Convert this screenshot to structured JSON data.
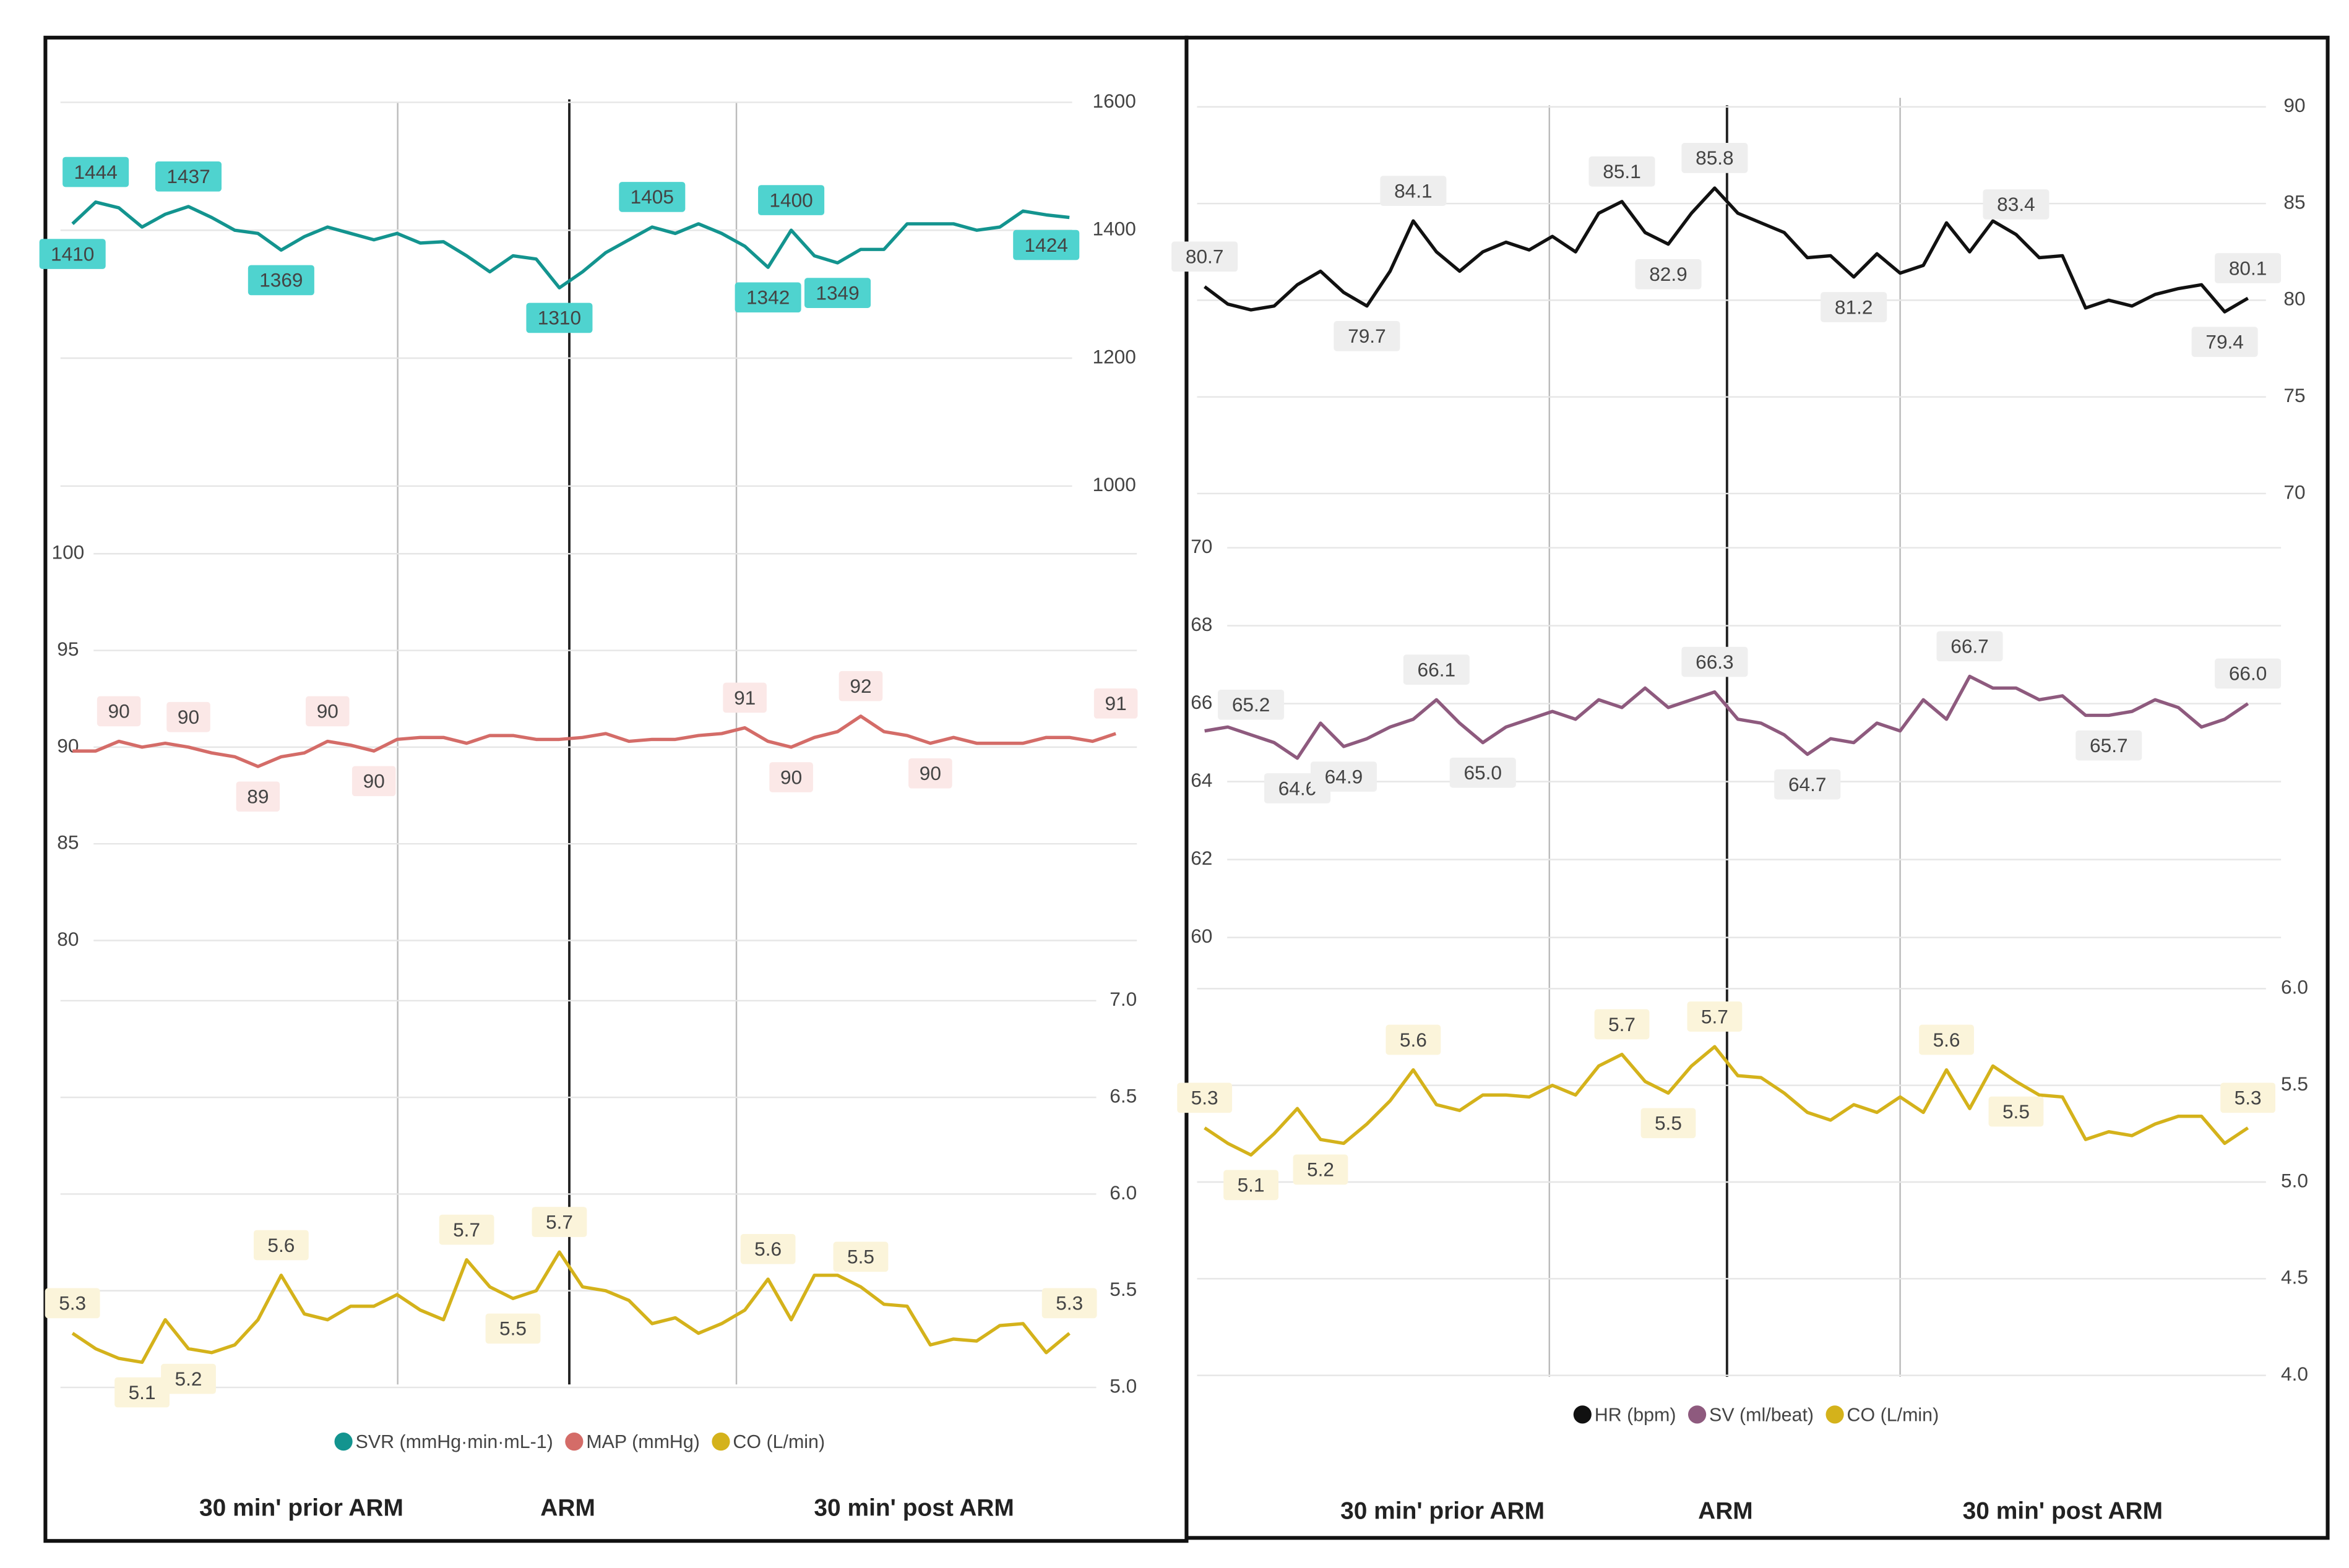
{
  "chart_data": [
    {
      "type": "line",
      "categories": [
        "30 min' prior ARM",
        "ARM",
        "30 min' post ARM"
      ],
      "subplots": [
        {
          "ylim": [
            1000,
            1600
          ],
          "yticks": [
            1000,
            1200,
            1400,
            1600
          ],
          "series": [
            {
              "name": "SVR (mmHg·min·mL-1)",
              "color": "#13948f",
              "label_bg": "#4fd3cf",
              "values": [
                1410,
                1444,
                1435,
                1405,
                1425,
                1437,
                1420,
                1400,
                1395,
                1369,
                1390,
                1405,
                1395,
                1385,
                1395,
                1380,
                1382,
                1360,
                1335,
                1360,
                1355,
                1310,
                1335,
                1365,
                1385,
                1405,
                1395,
                1410,
                1395,
                1375,
                1342,
                1400,
                1360,
                1349,
                1370,
                1370,
                1410,
                1410,
                1410,
                1400,
                1405,
                1430,
                1424,
                1420
              ],
              "value_labels": [
                "1410",
                "1444",
                null,
                null,
                null,
                "1437",
                null,
                null,
                null,
                "1369",
                null,
                null,
                null,
                null,
                null,
                null,
                null,
                null,
                null,
                null,
                null,
                "1310",
                null,
                null,
                null,
                "1405",
                null,
                null,
                null,
                null,
                "1342",
                "1400",
                null,
                "1349",
                null,
                null,
                null,
                null,
                null,
                null,
                null,
                null,
                "1424",
                null
              ]
            }
          ]
        },
        {
          "ylim": [
            80,
            100
          ],
          "yticks": [
            80,
            85,
            90,
            95,
            100
          ],
          "series": [
            {
              "name": "MAP (mmHg)",
              "color": "#d46c68",
              "label_bg": "#fbe8e7",
              "values": [
                89.8,
                89.8,
                90.3,
                90.0,
                90.2,
                90,
                89.7,
                89.5,
                89,
                89.5,
                89.7,
                90.3,
                90.1,
                89.8,
                90.4,
                90.5,
                90.5,
                90.2,
                90.6,
                90.6,
                90.4,
                90.4,
                90.5,
                90.7,
                90.3,
                90.4,
                90.4,
                90.6,
                90.7,
                91,
                90.3,
                90.0,
                90.5,
                90.8,
                91.6,
                90.8,
                90.6,
                90.2,
                90.5,
                90.2,
                90.2,
                90.2,
                90.5,
                90.5,
                90.3,
                90.7
              ],
              "value_labels": [
                null,
                null,
                "90",
                null,
                null,
                "90",
                null,
                null,
                "89",
                null,
                null,
                "90",
                null,
                "90",
                null,
                null,
                null,
                null,
                null,
                null,
                null,
                null,
                null,
                null,
                null,
                null,
                null,
                null,
                null,
                "91",
                null,
                "90",
                null,
                null,
                "92",
                null,
                null,
                "90",
                null,
                null,
                null,
                null,
                null,
                null,
                null,
                "91"
              ]
            }
          ]
        },
        {
          "ylim": [
            5,
            7
          ],
          "yticks": [
            {
              "value": 5,
              "label": "5.0"
            },
            5.5,
            {
              "value": 6,
              "label": "6.0"
            },
            6.5,
            {
              "value": 7,
              "label": "7.0"
            }
          ],
          "series": [
            {
              "name": "CO (L/min)",
              "color": "#d4b21b",
              "label_bg": "#fbf4da",
              "values": [
                5.28,
                5.2,
                5.15,
                5.13,
                5.35,
                5.2,
                5.18,
                5.22,
                5.35,
                5.58,
                5.38,
                5.35,
                5.42,
                5.42,
                5.48,
                5.4,
                5.35,
                5.66,
                5.52,
                5.46,
                5.5,
                5.7,
                5.52,
                5.5,
                5.45,
                5.33,
                5.36,
                5.28,
                5.33,
                5.4,
                5.56,
                5.35,
                5.58,
                5.58,
                5.52,
                5.43,
                5.42,
                5.22,
                5.25,
                5.24,
                5.32,
                5.33,
                5.18,
                5.28
              ],
              "value_labels": [
                "5.3",
                null,
                null,
                "5.1",
                null,
                "5.2",
                null,
                null,
                null,
                "5.6",
                null,
                null,
                null,
                null,
                null,
                null,
                null,
                "5.7",
                null,
                "5.5",
                null,
                "5.7",
                null,
                null,
                null,
                null,
                null,
                null,
                null,
                null,
                "5.6",
                null,
                null,
                null,
                "5.5",
                null,
                null,
                null,
                null,
                null,
                null,
                null,
                null,
                "5.3"
              ]
            }
          ]
        }
      ]
    },
    {
      "type": "line",
      "categories": [
        "30 min' prior ARM",
        "ARM",
        "30 min' post ARM"
      ],
      "subplots": [
        {
          "ylim": [
            70,
            90
          ],
          "yticks": [
            70,
            75,
            80,
            85,
            90
          ],
          "series": [
            {
              "name": "HR (bpm)",
              "color": "#111111",
              "label_bg": "#eeeeee",
              "values": [
                80.7,
                79.8,
                79.5,
                79.7,
                80.8,
                81.5,
                80.4,
                79.7,
                81.5,
                84.1,
                82.5,
                81.5,
                82.5,
                83.0,
                82.6,
                83.3,
                82.5,
                84.5,
                85.1,
                83.5,
                82.9,
                84.5,
                85.8,
                84.5,
                84.0,
                83.5,
                82.2,
                82.3,
                81.2,
                82.4,
                81.4,
                81.8,
                84.0,
                82.5,
                84.1,
                83.4,
                82.2,
                82.3,
                79.6,
                80.0,
                79.7,
                80.3,
                80.6,
                80.8,
                79.4,
                80.1
              ],
              "value_labels": [
                "80.7",
                null,
                null,
                null,
                null,
                null,
                null,
                "79.7",
                null,
                "84.1",
                null,
                null,
                null,
                null,
                null,
                null,
                null,
                null,
                "85.1",
                null,
                "82.9",
                null,
                "85.8",
                null,
                null,
                null,
                null,
                null,
                "81.2",
                null,
                null,
                null,
                null,
                null,
                null,
                "83.4",
                null,
                null,
                null,
                null,
                null,
                null,
                null,
                null,
                "79.4",
                "80.1"
              ]
            }
          ]
        },
        {
          "ylim": [
            60,
            70
          ],
          "yticks": [
            60,
            62,
            64,
            66,
            68,
            70
          ],
          "series": [
            {
              "name": "SV (ml/beat)",
              "color": "#8e5a7e",
              "label_bg": "#efefef",
              "values": [
                65.3,
                65.4,
                65.2,
                65.0,
                64.6,
                65.5,
                64.9,
                65.1,
                65.4,
                65.6,
                66.1,
                65.5,
                65.0,
                65.4,
                65.6,
                65.8,
                65.6,
                66.1,
                65.9,
                66.4,
                65.9,
                66.1,
                66.3,
                65.6,
                65.5,
                65.2,
                64.7,
                65.1,
                65.0,
                65.5,
                65.3,
                66.1,
                65.6,
                66.7,
                66.4,
                66.4,
                66.1,
                66.2,
                65.7,
                65.7,
                65.8,
                66.1,
                65.9,
                65.4,
                65.6,
                66.0
              ],
              "value_labels": [
                null,
                null,
                "65.2",
                null,
                "64.6",
                null,
                "64.9",
                null,
                null,
                null,
                "66.1",
                null,
                "65.0",
                null,
                null,
                null,
                null,
                null,
                null,
                null,
                null,
                null,
                "66.3",
                null,
                null,
                null,
                "64.7",
                null,
                null,
                null,
                null,
                null,
                null,
                "66.7",
                null,
                null,
                null,
                null,
                null,
                "65.7",
                null,
                null,
                null,
                null,
                null,
                "66.0"
              ]
            }
          ]
        },
        {
          "ylim": [
            4,
            6
          ],
          "yticks": [
            {
              "value": 4,
              "label": "4.0"
            },
            4.5,
            {
              "value": 5,
              "label": "5.0"
            },
            5.5,
            {
              "value": 6,
              "label": "6.0"
            }
          ],
          "series": [
            {
              "name": "CO (L/min)",
              "color": "#d4b21b",
              "label_bg": "#fbf4da",
              "values": [
                5.28,
                5.2,
                5.14,
                5.25,
                5.38,
                5.22,
                5.2,
                5.3,
                5.42,
                5.58,
                5.4,
                5.37,
                5.45,
                5.45,
                5.44,
                5.5,
                5.45,
                5.6,
                5.66,
                5.52,
                5.46,
                5.6,
                5.7,
                5.55,
                5.54,
                5.46,
                5.36,
                5.32,
                5.4,
                5.36,
                5.44,
                5.36,
                5.58,
                5.38,
                5.6,
                5.52,
                5.45,
                5.44,
                5.22,
                5.26,
                5.24,
                5.3,
                5.34,
                5.34,
                5.2,
                5.28
              ],
              "value_labels": [
                "5.3",
                null,
                "5.1",
                null,
                null,
                "5.2",
                null,
                null,
                null,
                "5.6",
                null,
                null,
                null,
                null,
                null,
                null,
                null,
                null,
                "5.7",
                null,
                "5.5",
                null,
                "5.7",
                null,
                null,
                null,
                null,
                null,
                null,
                null,
                null,
                null,
                "5.6",
                null,
                null,
                "5.5",
                null,
                null,
                null,
                null,
                null,
                null,
                null,
                null,
                null,
                "5.3"
              ]
            }
          ]
        }
      ]
    }
  ]
}
